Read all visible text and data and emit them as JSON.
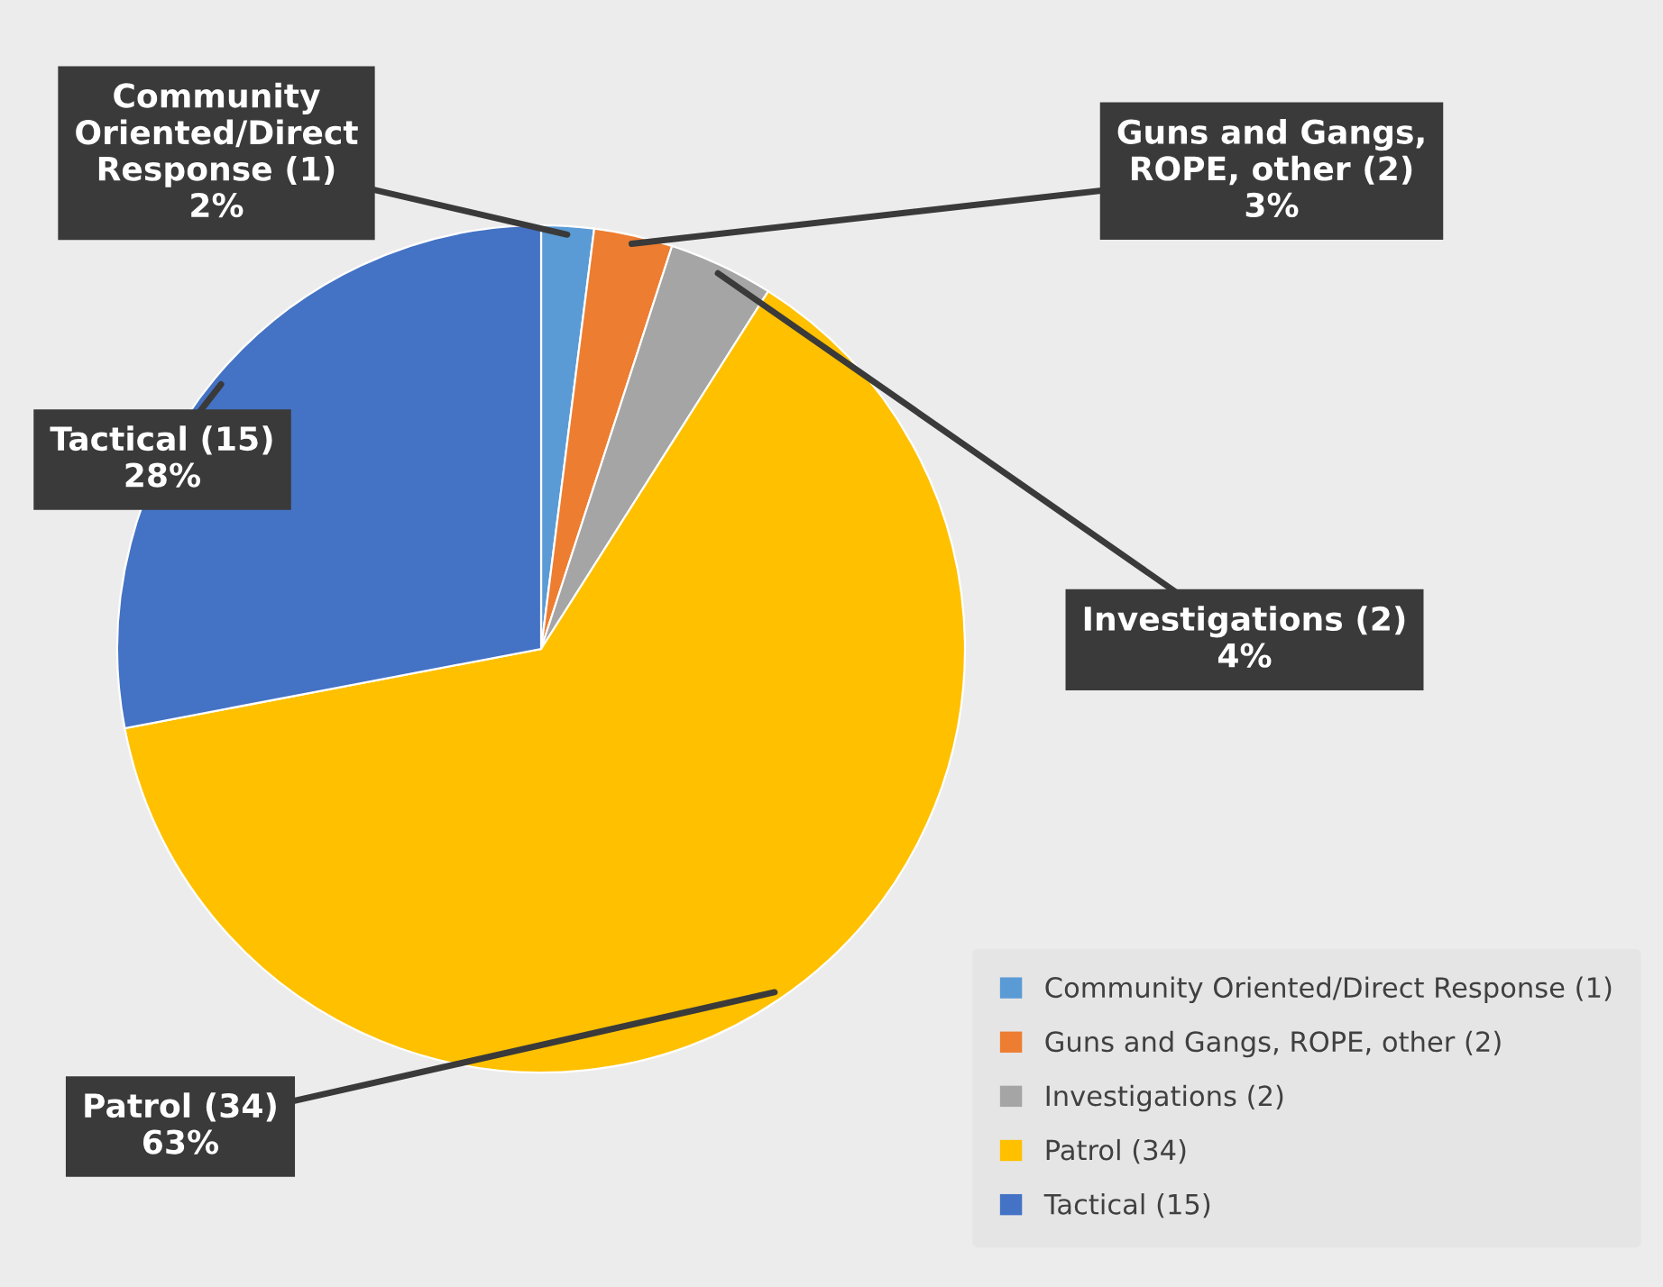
{
  "chart_data": {
    "type": "pie",
    "categories": [
      "Community Oriented/Direct Response (1)",
      "Guns and Gangs, ROPE, other (2)",
      "Investigations (2)",
      "Patrol (34)",
      "Tactical (15)"
    ],
    "values": [
      2,
      3,
      4,
      63,
      28
    ],
    "value_labels": [
      "2%",
      "3%",
      "4%",
      "63%",
      "28%"
    ],
    "colors": [
      "#5b9bd5",
      "#ed7d31",
      "#a5a5a5",
      "#ffc000",
      "#4472c4"
    ],
    "legend": "bottom right"
  }
}
